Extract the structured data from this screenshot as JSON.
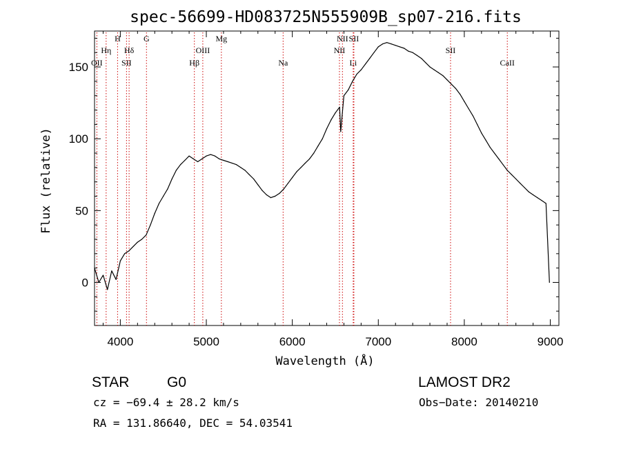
{
  "chart_data": {
    "type": "line",
    "title": "spec-56699-HD083725N555909B_sp07-216.fits",
    "xlabel": "Wavelength (Å)",
    "ylabel": "Flux (relative)",
    "xlim": [
      3700,
      9100
    ],
    "ylim": [
      -30,
      175
    ],
    "xticks": [
      4000,
      5000,
      6000,
      7000,
      8000,
      9000
    ],
    "yticks": [
      0,
      50,
      100,
      150
    ],
    "grid": false,
    "series": [
      {
        "color": "#000000",
        "x": [
          3700,
          3750,
          3800,
          3850,
          3900,
          3950,
          4000,
          4050,
          4100,
          4150,
          4200,
          4250,
          4300,
          4350,
          4400,
          4450,
          4500,
          4550,
          4600,
          4650,
          4700,
          4750,
          4800,
          4850,
          4900,
          4950,
          5000,
          5050,
          5100,
          5150,
          5200,
          5250,
          5300,
          5350,
          5400,
          5450,
          5500,
          5550,
          5600,
          5650,
          5700,
          5750,
          5800,
          5850,
          5900,
          5950,
          6000,
          6050,
          6100,
          6150,
          6200,
          6250,
          6300,
          6350,
          6400,
          6450,
          6500,
          6550,
          6563,
          6600,
          6650,
          6700,
          6750,
          6800,
          6850,
          6900,
          6950,
          7000,
          7050,
          7100,
          7150,
          7200,
          7250,
          7300,
          7350,
          7400,
          7450,
          7500,
          7550,
          7600,
          7650,
          7700,
          7750,
          7800,
          7850,
          7900,
          7950,
          8000,
          8050,
          8100,
          8150,
          8200,
          8250,
          8300,
          8350,
          8400,
          8450,
          8500,
          8550,
          8600,
          8650,
          8700,
          8750,
          8800,
          8850,
          8900,
          8950,
          8990
        ],
        "y": [
          10,
          0,
          5,
          -5,
          8,
          2,
          15,
          20,
          22,
          25,
          28,
          30,
          33,
          40,
          48,
          55,
          60,
          65,
          72,
          78,
          82,
          85,
          88,
          86,
          84,
          86,
          88,
          89,
          88,
          86,
          85,
          84,
          83,
          82,
          80,
          78,
          75,
          72,
          68,
          64,
          61,
          59,
          60,
          62,
          65,
          69,
          73,
          77,
          80,
          83,
          86,
          90,
          95,
          100,
          107,
          113,
          118,
          122,
          105,
          130,
          134,
          140,
          145,
          148,
          152,
          156,
          160,
          164,
          166,
          167,
          166,
          165,
          164,
          163,
          161,
          160,
          158,
          156,
          153,
          150,
          148,
          146,
          144,
          141,
          138,
          135,
          131,
          126,
          121,
          116,
          110,
          104,
          99,
          94,
          90,
          86,
          82,
          78,
          75,
          72,
          69,
          66,
          63,
          61,
          59,
          57,
          55,
          0
        ]
      }
    ],
    "annotations": [
      {
        "label": "OII",
        "x": 3727,
        "row": 4
      },
      {
        "label": "Hη",
        "x": 3835,
        "row": 2
      },
      {
        "label": "H",
        "x": 3968,
        "row": 1
      },
      {
        "label": "SII",
        "x": 4072,
        "row": 4
      },
      {
        "label": "Hδ",
        "x": 4102,
        "row": 2
      },
      {
        "label": "G",
        "x": 4304,
        "row": 1
      },
      {
        "label": "Hβ",
        "x": 4861,
        "row": 4
      },
      {
        "label": "OIII",
        "x": 4959,
        "row": 2
      },
      {
        "label": "Mg",
        "x": 5175,
        "row": 1
      },
      {
        "label": "Na",
        "x": 5893,
        "row": 4
      },
      {
        "label": "NII",
        "x": 6548,
        "row": 2
      },
      {
        "label": "NII",
        "x": 6583,
        "row": 1
      },
      {
        "label": "Li",
        "x": 6708,
        "row": 4
      },
      {
        "label": "SII",
        "x": 6716,
        "row": 1
      },
      {
        "label": "SII",
        "x": 7840,
        "row": 2
      },
      {
        "label": "CaII",
        "x": 8500,
        "row": 4
      }
    ]
  },
  "info": {
    "object_class": "STAR",
    "subclass": "G0",
    "survey": "LAMOST DR2",
    "cz": "cz = −69.4 ± 28.2 km/s",
    "obs_date": "Obs−Date: 20140210",
    "coords": "RA = 131.86640, DEC =  54.03541"
  }
}
